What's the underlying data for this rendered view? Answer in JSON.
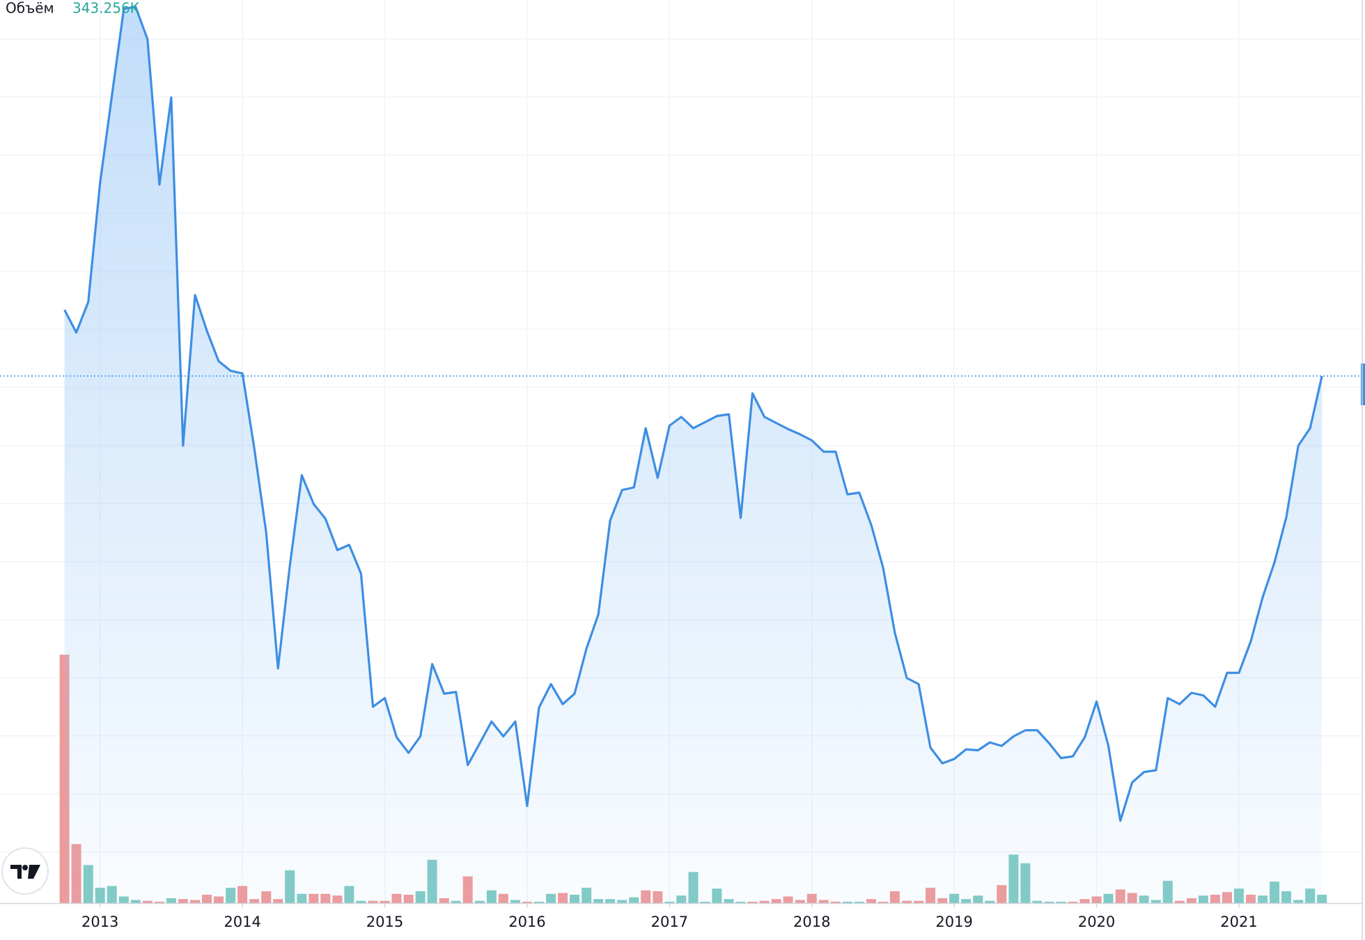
{
  "chart_data": {
    "type": "area",
    "x": [
      2012.75,
      2012.833,
      2012.917,
      2013,
      2013.083,
      2013.167,
      2013.25,
      2013.333,
      2013.417,
      2013.5,
      2013.583,
      2013.667,
      2013.75,
      2013.833,
      2013.917,
      2014,
      2014.083,
      2014.167,
      2014.25,
      2014.333,
      2014.417,
      2014.5,
      2014.583,
      2014.667,
      2014.75,
      2014.833,
      2014.917,
      2015,
      2015.083,
      2015.167,
      2015.25,
      2015.333,
      2015.417,
      2015.5,
      2015.583,
      2015.667,
      2015.75,
      2015.833,
      2015.917,
      2016,
      2016.083,
      2016.167,
      2016.25,
      2016.333,
      2016.417,
      2016.5,
      2016.583,
      2016.667,
      2016.75,
      2016.833,
      2016.917,
      2017,
      2017.083,
      2017.167,
      2017.25,
      2017.333,
      2017.417,
      2017.5,
      2017.583,
      2017.667,
      2017.75,
      2017.833,
      2017.917,
      2018,
      2018.083,
      2018.167,
      2018.25,
      2018.333,
      2018.417,
      2018.5,
      2018.583,
      2018.667,
      2018.75,
      2018.833,
      2018.917,
      2019,
      2019.083,
      2019.167,
      2019.25,
      2019.333,
      2019.417,
      2019.5,
      2019.583,
      2019.667,
      2019.75,
      2019.833,
      2019.917,
      2020,
      2020.083,
      2020.167,
      2020.25,
      2020.333,
      2020.417,
      2020.5,
      2020.583,
      2020.667,
      2020.75,
      2020.833,
      2020.917,
      2021,
      2021.083,
      2021.167,
      2021.25,
      2021.333,
      2021.417,
      2021.5,
      2021.583
    ],
    "series": [
      {
        "color": "#3d8ee3",
        "values": [
          68.2,
          65.6,
          69.1,
          82.8,
          92.8,
          102.8,
          103.0,
          99.3,
          82.6,
          92.6,
          52.6,
          69.9,
          65.8,
          62.3,
          61.2,
          60.9,
          52.3,
          42.6,
          27.0,
          38.8,
          49.2,
          45.9,
          44.2,
          40.6,
          41.2,
          37.9,
          22.6,
          23.6,
          19.1,
          17.3,
          19.2,
          27.5,
          24.1,
          24.3,
          15.9,
          18.4,
          20.9,
          19.2,
          20.9,
          11.2,
          22.5,
          25.2,
          22.9,
          24.1,
          29.3,
          33.2,
          44.0,
          47.5,
          47.8,
          54.6,
          48.9,
          54.9,
          55.9,
          54.6,
          55.3,
          56.0,
          56.2,
          44.3,
          58.6,
          55.9,
          55.2,
          54.5,
          53.9,
          53.2,
          51.9,
          51.9,
          47.0,
          47.2,
          43.5,
          38.6,
          31.1,
          25.9,
          25.2,
          17.9,
          16.1,
          16.6,
          17.7,
          17.6,
          18.5,
          18.1,
          19.2,
          19.9,
          19.9,
          18.4,
          16.7,
          16.9,
          19.1,
          23.2,
          18.1,
          9.5,
          13.9,
          15.1,
          15.3,
          23.6,
          22.9,
          24.2,
          23.9,
          22.6,
          26.5,
          26.5,
          30.1,
          35.2,
          39.2,
          44.4,
          52.6,
          54.6,
          60.6
        ]
      }
    ],
    "volume": {
      "label": "Объём",
      "value_label": "343.256K",
      "values": [
        9776,
        2332,
        1509,
        617,
        686,
        274,
        137,
        103,
        69,
        206,
        172,
        137,
        343,
        274,
        617,
        686,
        172,
        480,
        172,
        1303,
        377,
        377,
        377,
        309,
        686,
        103,
        103,
        103,
        377,
        343,
        480,
        1715,
        206,
        103,
        1063,
        103,
        515,
        377,
        137,
        69,
        69,
        377,
        412,
        343,
        617,
        172,
        172,
        137,
        240,
        515,
        480,
        69,
        309,
        1235,
        69,
        583,
        172,
        69,
        69,
        103,
        172,
        274,
        137,
        377,
        137,
        69,
        69,
        69,
        172,
        69,
        480,
        103,
        103,
        617,
        206,
        377,
        172,
        309,
        103,
        720,
        1921,
        1578,
        103,
        69,
        69,
        69,
        172,
        274,
        377,
        549,
        412,
        309,
        137,
        892,
        103,
        206,
        309,
        343,
        446,
        583,
        343,
        309,
        858,
        480,
        137,
        583,
        343.256
      ],
      "colors": [
        "#ef9a9a",
        "#ef9a9a",
        "#80cbc4",
        "#80cbc4",
        "#80cbc4",
        "#80cbc4",
        "#80cbc4",
        "#ef9a9a",
        "#ef9a9a",
        "#80cbc4",
        "#ef9a9a",
        "#ef9a9a",
        "#ef9a9a",
        "#ef9a9a",
        "#80cbc4",
        "#ef9a9a",
        "#ef9a9a",
        "#ef9a9a",
        "#ef9a9a",
        "#80cbc4",
        "#80cbc4",
        "#ef9a9a",
        "#ef9a9a",
        "#ef9a9a",
        "#80cbc4",
        "#80cbc4",
        "#ef9a9a",
        "#ef9a9a",
        "#ef9a9a",
        "#ef9a9a",
        "#80cbc4",
        "#80cbc4",
        "#ef9a9a",
        "#80cbc4",
        "#ef9a9a",
        "#80cbc4",
        "#80cbc4",
        "#ef9a9a",
        "#80cbc4",
        "#ef9a9a",
        "#80cbc4",
        "#80cbc4",
        "#ef9a9a",
        "#80cbc4",
        "#80cbc4",
        "#80cbc4",
        "#80cbc4",
        "#80cbc4",
        "#80cbc4",
        "#ef9a9a",
        "#ef9a9a",
        "#80cbc4",
        "#80cbc4",
        "#80cbc4",
        "#80cbc4",
        "#80cbc4",
        "#80cbc4",
        "#80cbc4",
        "#ef9a9a",
        "#ef9a9a",
        "#ef9a9a",
        "#ef9a9a",
        "#ef9a9a",
        "#ef9a9a",
        "#ef9a9a",
        "#ef9a9a",
        "#80cbc4",
        "#80cbc4",
        "#ef9a9a",
        "#ef9a9a",
        "#ef9a9a",
        "#ef9a9a",
        "#ef9a9a",
        "#ef9a9a",
        "#ef9a9a",
        "#80cbc4",
        "#80cbc4",
        "#80cbc4",
        "#80cbc4",
        "#ef9a9a",
        "#80cbc4",
        "#80cbc4",
        "#80cbc4",
        "#80cbc4",
        "#80cbc4",
        "#ef9a9a",
        "#ef9a9a",
        "#ef9a9a",
        "#80cbc4",
        "#ef9a9a",
        "#ef9a9a",
        "#80cbc4",
        "#80cbc4",
        "#80cbc4",
        "#ef9a9a",
        "#ef9a9a",
        "#80cbc4",
        "#ef9a9a",
        "#ef9a9a",
        "#80cbc4",
        "#ef9a9a",
        "#80cbc4",
        "#80cbc4",
        "#80cbc4",
        "#80cbc4",
        "#80cbc4",
        "#80cbc4"
      ],
      "value_color": "#26a69a",
      "ylim": [
        0,
        35500
      ]
    },
    "xlim": [
      2012.297,
      2021.866
    ],
    "xticks": [
      2013,
      2014,
      2015,
      2016,
      2017,
      2018,
      2019,
      2020,
      2021
    ],
    "ylim": [
      0,
      103.8
    ],
    "grid": true
  }
}
